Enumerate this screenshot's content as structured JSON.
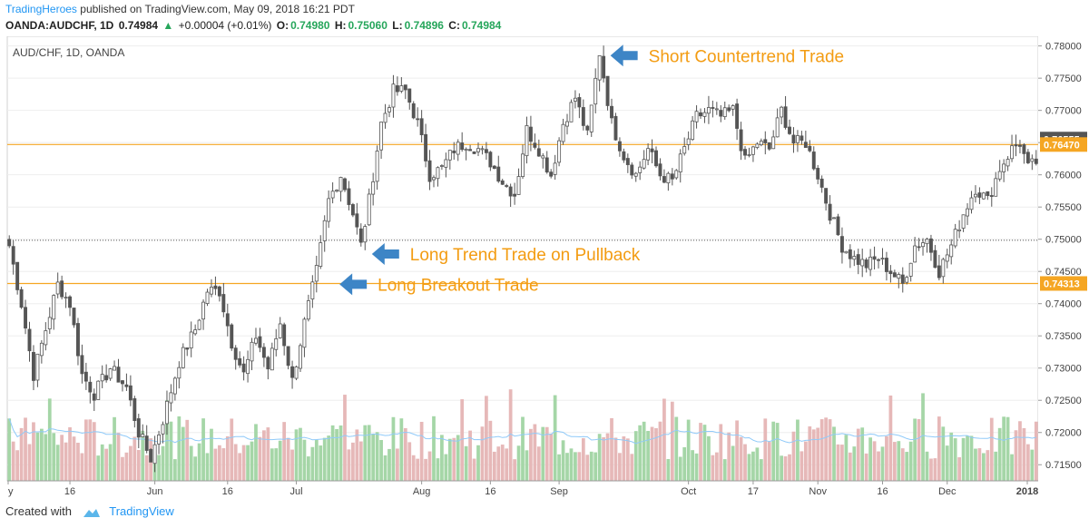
{
  "header": {
    "brand": "TradingHeroes",
    "published": "published on TradingView.com, May 09, 2018 16:21 PDT",
    "symbol_line": "OANDA:AUDCHF, 1D",
    "last": "0.74984",
    "change": "+0.00004 (+0.01%)",
    "open_label": "O:",
    "open": "0.74980",
    "high_label": "H:",
    "high": "0.75060",
    "low_label": "L:",
    "low": "0.74896",
    "close_label": "C:",
    "close": "0.74984",
    "up_arrow": "▲"
  },
  "footer": {
    "created": "Created with",
    "brand": "TradingView"
  },
  "colors": {
    "up_candle": "#ffffff",
    "down_candle": "#555555",
    "wick": "#555555",
    "vol_up": "#a5d6a7",
    "vol_down": "#e6b8b8",
    "ma_line": "#90caf9",
    "level_line": "#f5a623",
    "annotation": "#f39c12",
    "arrow": "#3d85c6",
    "price_tag_dark": "#555555",
    "price_tag_orange": "#f5a623"
  },
  "chart_data": {
    "type": "candlestick",
    "title": "AUD/CHF, 1D, OANDA",
    "x_ticks": [
      "y",
      "16",
      "Jun",
      "16",
      "Jul",
      "Aug",
      "16",
      "Sep",
      "Oct",
      "17",
      "Nov",
      "16",
      "Dec",
      "2018"
    ],
    "y_ticks": [
      "0.78000",
      "0.77500",
      "0.77000",
      "0.76500",
      "0.76000",
      "0.75500",
      "0.75000",
      "0.74500",
      "0.74000",
      "0.73500",
      "0.73000",
      "0.72500",
      "0.72000",
      "0.71500"
    ],
    "ylim": [
      0.7125,
      0.7815
    ],
    "price_tags": [
      {
        "label": "0.76555",
        "value": 0.76555,
        "style": "dark"
      },
      {
        "label": "0.76470",
        "value": 0.7647,
        "style": "orange"
      },
      {
        "label": "0.74313",
        "value": 0.74313,
        "style": "orange"
      }
    ],
    "levels": [
      {
        "value": 0.7647,
        "style": "solid"
      },
      {
        "value": 0.74313,
        "style": "solid"
      },
      {
        "value": 0.74984,
        "style": "dotted"
      }
    ],
    "annotations": [
      {
        "text": "Short Countertrend Trade",
        "at_price": 0.7785,
        "at_bar": 146
      },
      {
        "text": "Long Trend Trade on Pullback",
        "at_price": 0.7477,
        "at_bar": 87
      },
      {
        "text": "Long Breakout Trade",
        "at_price": 0.743,
        "at_bar": 79
      }
    ],
    "anchors": [
      [
        0,
        0.749
      ],
      [
        3,
        0.74
      ],
      [
        6,
        0.729
      ],
      [
        9,
        0.736
      ],
      [
        12,
        0.743
      ],
      [
        15,
        0.74
      ],
      [
        18,
        0.729
      ],
      [
        21,
        0.726
      ],
      [
        25,
        0.73
      ],
      [
        29,
        0.727
      ],
      [
        32,
        0.72
      ],
      [
        35,
        0.716
      ],
      [
        38,
        0.722
      ],
      [
        42,
        0.731
      ],
      [
        46,
        0.736
      ],
      [
        49,
        0.742
      ],
      [
        52,
        0.742
      ],
      [
        55,
        0.734
      ],
      [
        58,
        0.729
      ],
      [
        61,
        0.735
      ],
      [
        64,
        0.73
      ],
      [
        67,
        0.737
      ],
      [
        70,
        0.728
      ],
      [
        73,
        0.737
      ],
      [
        76,
        0.745
      ],
      [
        79,
        0.756
      ],
      [
        82,
        0.76
      ],
      [
        85,
        0.754
      ],
      [
        87,
        0.749
      ],
      [
        89,
        0.756
      ],
      [
        92,
        0.768
      ],
      [
        95,
        0.773
      ],
      [
        98,
        0.773
      ],
      [
        101,
        0.768
      ],
      [
        104,
        0.76
      ],
      [
        107,
        0.761
      ],
      [
        110,
        0.764
      ],
      [
        113,
        0.765
      ],
      [
        116,
        0.764
      ],
      [
        119,
        0.762
      ],
      [
        122,
        0.759
      ],
      [
        125,
        0.757
      ],
      [
        128,
        0.767
      ],
      [
        131,
        0.764
      ],
      [
        134,
        0.76
      ],
      [
        137,
        0.768
      ],
      [
        140,
        0.772
      ],
      [
        143,
        0.766
      ],
      [
        146,
        0.779
      ],
      [
        149,
        0.768
      ],
      [
        152,
        0.763
      ],
      [
        155,
        0.76
      ],
      [
        158,
        0.764
      ],
      [
        161,
        0.76
      ],
      [
        164,
        0.759
      ],
      [
        167,
        0.764
      ],
      [
        170,
        0.769
      ],
      [
        173,
        0.77
      ],
      [
        176,
        0.769
      ],
      [
        179,
        0.77
      ],
      [
        182,
        0.762
      ],
      [
        185,
        0.765
      ],
      [
        188,
        0.764
      ],
      [
        191,
        0.77
      ],
      [
        194,
        0.765
      ],
      [
        197,
        0.765
      ],
      [
        200,
        0.76
      ],
      [
        203,
        0.754
      ],
      [
        206,
        0.749
      ],
      [
        209,
        0.747
      ],
      [
        212,
        0.746
      ],
      [
        215,
        0.747
      ],
      [
        218,
        0.745
      ],
      [
        221,
        0.743
      ],
      [
        224,
        0.749
      ],
      [
        227,
        0.75
      ],
      [
        230,
        0.745
      ],
      [
        233,
        0.749
      ],
      [
        236,
        0.754
      ],
      [
        239,
        0.758
      ],
      [
        242,
        0.756
      ],
      [
        245,
        0.761
      ],
      [
        248,
        0.764
      ],
      [
        250,
        0.765
      ],
      [
        252,
        0.761
      ],
      [
        254,
        0.762
      ]
    ],
    "n_bars": 255
  }
}
